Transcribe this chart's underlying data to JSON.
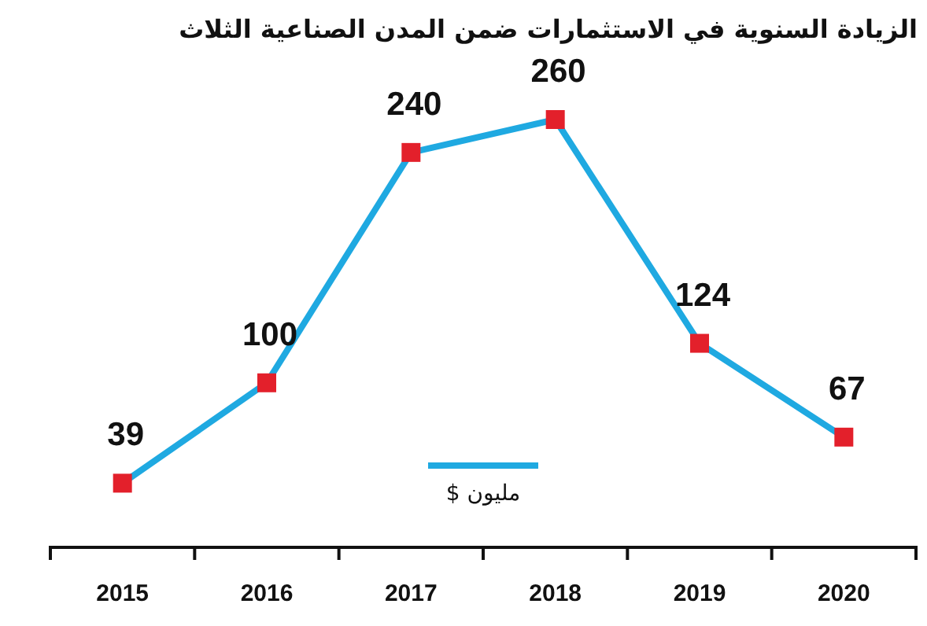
{
  "chart_data": {
    "type": "line",
    "title": "الزيادة السنوية في الاستثمارات ضمن المدن الصناعية الثلاث",
    "categories": [
      "2015",
      "2016",
      "2017",
      "2018",
      "2019",
      "2020"
    ],
    "series": [
      {
        "name": "مليون $",
        "color": "#1fa9e1",
        "values": [
          39,
          100,
          240,
          260,
          124,
          67
        ]
      }
    ],
    "data_labels": true,
    "marker": "square",
    "legend": "bottom",
    "grid": false
  }
}
